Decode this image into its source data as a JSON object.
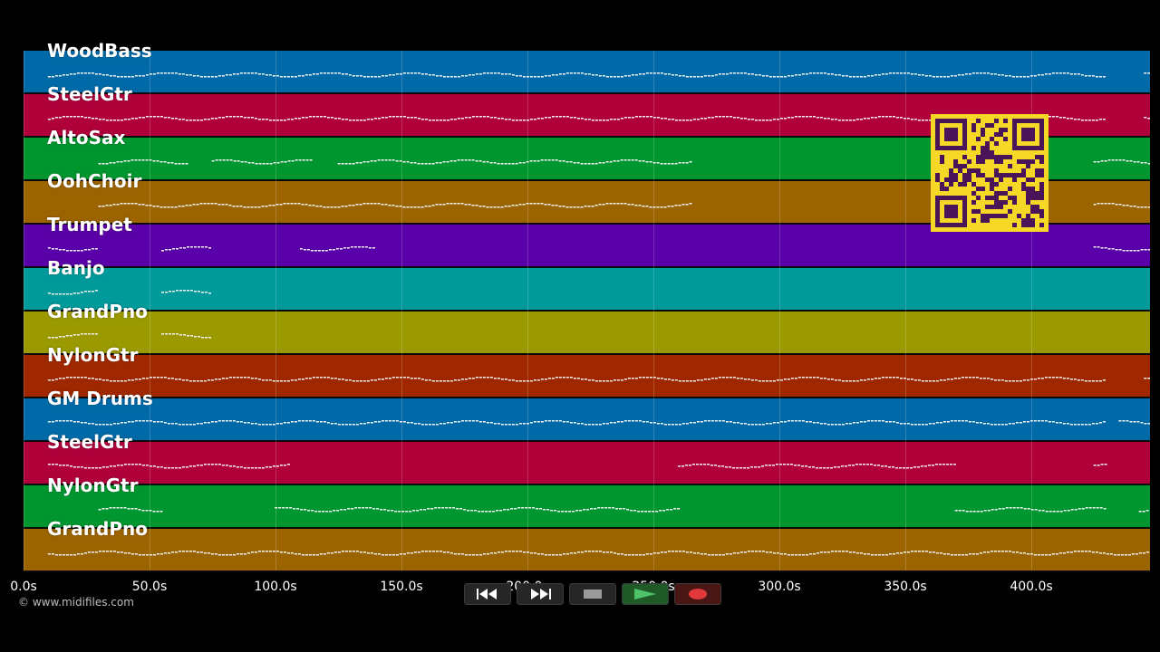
{
  "player": {
    "tracks": [
      {
        "name": "WoodBass",
        "color": "#006aa8"
      },
      {
        "name": "SteelGtr",
        "color": "#b0003a"
      },
      {
        "name": "AltoSax",
        "color": "#00962f"
      },
      {
        "name": "OohChoir",
        "color": "#9c6400"
      },
      {
        "name": "Trumpet",
        "color": "#5a00a8"
      },
      {
        "name": "Banjo",
        "color": "#009a9a"
      },
      {
        "name": "GrandPno",
        "color": "#9a9a00"
      },
      {
        "name": "NylonGtr",
        "color": "#a02800"
      },
      {
        "name": "GM Drums",
        "color": "#006aa8"
      },
      {
        "name": "SteelGtr",
        "color": "#b0003a"
      },
      {
        "name": "NylonGtr",
        "color": "#00962f"
      },
      {
        "name": "GrandPno",
        "color": "#9c6400"
      }
    ],
    "time_ticks": [
      "0.0s",
      "50.0s",
      "100.0s",
      "150.0s",
      "200.0s",
      "250.0s",
      "300.0s",
      "350.0s",
      "400.0s"
    ],
    "copyright": "© www.midifiles.com",
    "transport": {
      "rewind": "rewind-icon",
      "fast_forward": "fast-forward-icon",
      "stop": "stop-icon",
      "play": "play-icon",
      "record": "record-icon"
    },
    "qr_code": "qr-code"
  }
}
